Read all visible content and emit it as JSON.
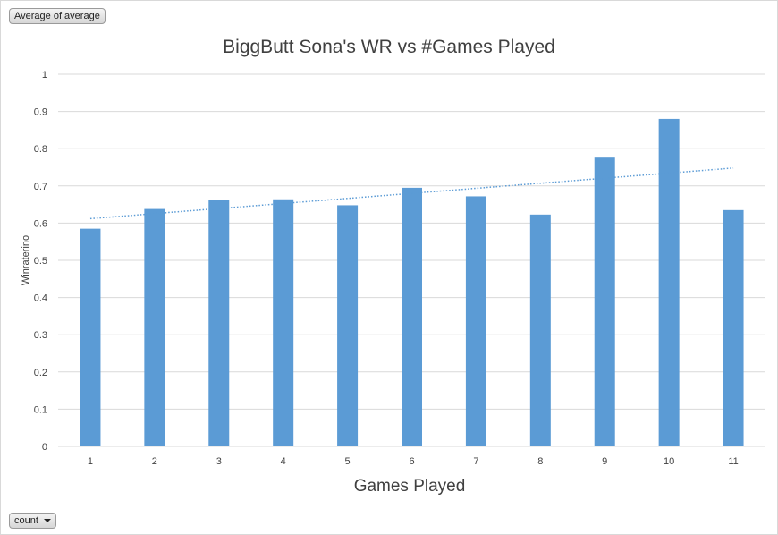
{
  "filters": {
    "top_field": "Average of average",
    "bottom_field": "count"
  },
  "chart_data": {
    "type": "bar",
    "title": "BiggButt Sona's WR vs #Games Played",
    "xlabel": "Games Played",
    "ylabel": "Winraterino",
    "categories": [
      "1",
      "2",
      "3",
      "4",
      "5",
      "6",
      "7",
      "8",
      "9",
      "10",
      "11"
    ],
    "values": [
      0.585,
      0.638,
      0.662,
      0.664,
      0.648,
      0.695,
      0.672,
      0.623,
      0.776,
      0.88,
      0.635
    ],
    "ylim": [
      0,
      1
    ],
    "yticks": [
      "0",
      "0.1",
      "0.2",
      "0.3",
      "0.4",
      "0.5",
      "0.6",
      "0.7",
      "0.8",
      "0.9",
      "1"
    ],
    "grid": true,
    "trendline": {
      "type": "linear",
      "style": "dotted",
      "start": 0.612,
      "end": 0.748
    },
    "colors": {
      "bar": "#5b9bd5",
      "trendline": "#5b9bd5",
      "grid": "#d9d9d9"
    }
  }
}
